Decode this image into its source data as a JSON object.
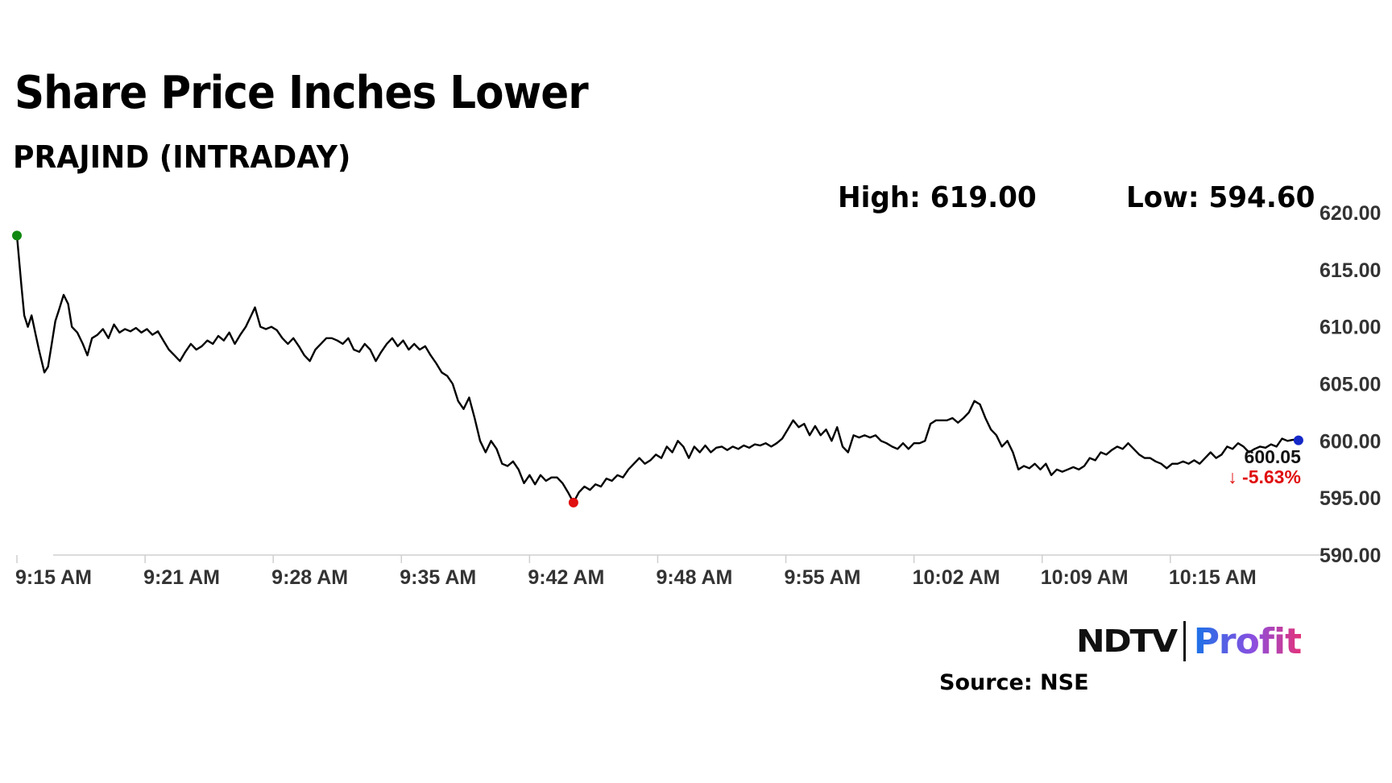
{
  "title": "Share Price Inches Lower",
  "subtitle": "PRAJIND (INTRADAY)",
  "stats": {
    "high": "High: 619.00",
    "low": "Low: 594.60"
  },
  "source": "Source: NSE",
  "logo": {
    "part1": "NDTV",
    "part2": "Profit"
  },
  "colors": {
    "line": "#000000",
    "start": "#118811",
    "low": "#e01010",
    "last": "#1428c8",
    "change": "#e01010",
    "axis": "#cfcfcf"
  },
  "chart_data": {
    "type": "line",
    "ylim": [
      590,
      620
    ],
    "y_ticks": [
      "620.00",
      "615.00",
      "610.00",
      "605.00",
      "600.00",
      "595.00",
      "590.00"
    ],
    "x_ticks": [
      "9:15 AM",
      "9:21 AM",
      "9:28 AM",
      "9:35 AM",
      "9:42 AM",
      "9:48 AM",
      "9:55 AM",
      "10:02 AM",
      "10:09 AM",
      "10:15 AM"
    ],
    "x_tick_minutes": [
      0,
      7,
      14,
      21,
      28,
      35,
      42,
      49,
      56,
      63
    ],
    "x_range_minutes": [
      0,
      70.4
    ],
    "last_value": "600.05",
    "change": "-5.63%",
    "change_arrow": "↓",
    "grid": false,
    "series": [
      {
        "name": "",
        "points": [
          [
            0.0,
            618.0
          ],
          [
            0.25,
            613.5
          ],
          [
            0.4,
            611.0
          ],
          [
            0.6,
            610.0
          ],
          [
            0.8,
            611.0
          ],
          [
            1.0,
            609.5
          ],
          [
            1.2,
            608.0
          ],
          [
            1.5,
            606.0
          ],
          [
            1.7,
            606.5
          ],
          [
            1.9,
            608.5
          ],
          [
            2.1,
            610.5
          ],
          [
            2.3,
            611.5
          ],
          [
            2.55,
            612.8
          ],
          [
            2.8,
            612.0
          ],
          [
            3.0,
            610.0
          ],
          [
            3.3,
            609.5
          ],
          [
            3.6,
            608.5
          ],
          [
            3.85,
            607.5
          ],
          [
            4.1,
            609.0
          ],
          [
            4.4,
            609.3
          ],
          [
            4.7,
            609.8
          ],
          [
            5.0,
            609.0
          ],
          [
            5.3,
            610.2
          ],
          [
            5.6,
            609.5
          ],
          [
            5.9,
            609.8
          ],
          [
            6.2,
            609.6
          ],
          [
            6.5,
            609.9
          ],
          [
            6.8,
            609.5
          ],
          [
            7.1,
            609.8
          ],
          [
            7.4,
            609.3
          ],
          [
            7.7,
            609.6
          ],
          [
            8.0,
            608.8
          ],
          [
            8.3,
            608.0
          ],
          [
            8.6,
            607.5
          ],
          [
            8.9,
            607.0
          ],
          [
            9.2,
            607.8
          ],
          [
            9.5,
            608.5
          ],
          [
            9.8,
            608.0
          ],
          [
            10.1,
            608.3
          ],
          [
            10.4,
            608.8
          ],
          [
            10.7,
            608.5
          ],
          [
            11.0,
            609.2
          ],
          [
            11.3,
            608.8
          ],
          [
            11.6,
            609.5
          ],
          [
            11.9,
            608.5
          ],
          [
            12.2,
            609.3
          ],
          [
            12.5,
            610.0
          ],
          [
            12.8,
            611.0
          ],
          [
            13.0,
            611.7
          ],
          [
            13.3,
            610.0
          ],
          [
            13.6,
            609.8
          ],
          [
            13.9,
            610.0
          ],
          [
            14.2,
            609.7
          ],
          [
            14.5,
            609.0
          ],
          [
            14.8,
            608.5
          ],
          [
            15.1,
            609.0
          ],
          [
            15.4,
            608.3
          ],
          [
            15.7,
            607.5
          ],
          [
            16.0,
            607.0
          ],
          [
            16.3,
            608.0
          ],
          [
            16.6,
            608.5
          ],
          [
            16.9,
            609.0
          ],
          [
            17.2,
            609.0
          ],
          [
            17.5,
            608.8
          ],
          [
            17.8,
            608.5
          ],
          [
            18.1,
            609.0
          ],
          [
            18.4,
            608.0
          ],
          [
            18.7,
            607.8
          ],
          [
            19.0,
            608.5
          ],
          [
            19.3,
            608.0
          ],
          [
            19.6,
            607.0
          ],
          [
            19.9,
            607.8
          ],
          [
            20.2,
            608.5
          ],
          [
            20.5,
            609.0
          ],
          [
            20.8,
            608.3
          ],
          [
            21.1,
            608.8
          ],
          [
            21.4,
            608.0
          ],
          [
            21.7,
            608.5
          ],
          [
            22.0,
            608.0
          ],
          [
            22.3,
            608.3
          ],
          [
            22.6,
            607.5
          ],
          [
            22.9,
            606.8
          ],
          [
            23.2,
            606.0
          ],
          [
            23.5,
            605.7
          ],
          [
            23.8,
            605.0
          ],
          [
            24.1,
            603.5
          ],
          [
            24.4,
            602.8
          ],
          [
            24.7,
            603.8
          ],
          [
            25.0,
            602.0
          ],
          [
            25.3,
            600.0
          ],
          [
            25.6,
            599.0
          ],
          [
            25.9,
            600.0
          ],
          [
            26.2,
            599.3
          ],
          [
            26.5,
            598.0
          ],
          [
            26.8,
            597.8
          ],
          [
            27.1,
            598.2
          ],
          [
            27.4,
            597.5
          ],
          [
            27.7,
            596.3
          ],
          [
            28.0,
            597.0
          ],
          [
            28.3,
            596.2
          ],
          [
            28.6,
            597.0
          ],
          [
            28.9,
            596.5
          ],
          [
            29.2,
            596.8
          ],
          [
            29.5,
            596.8
          ],
          [
            29.8,
            596.3
          ],
          [
            30.1,
            595.5
          ],
          [
            30.4,
            594.6
          ],
          [
            30.7,
            595.5
          ],
          [
            31.0,
            596.0
          ],
          [
            31.3,
            595.7
          ],
          [
            31.6,
            596.2
          ],
          [
            31.9,
            596.0
          ],
          [
            32.2,
            596.7
          ],
          [
            32.5,
            596.5
          ],
          [
            32.8,
            597.0
          ],
          [
            33.1,
            596.8
          ],
          [
            33.4,
            597.5
          ],
          [
            33.7,
            598.0
          ],
          [
            34.0,
            598.5
          ],
          [
            34.3,
            598.0
          ],
          [
            34.6,
            598.3
          ],
          [
            34.9,
            598.8
          ],
          [
            35.2,
            598.5
          ],
          [
            35.5,
            599.5
          ],
          [
            35.8,
            599.0
          ],
          [
            36.1,
            600.0
          ],
          [
            36.4,
            599.5
          ],
          [
            36.7,
            598.5
          ],
          [
            37.0,
            599.5
          ],
          [
            37.3,
            599.0
          ],
          [
            37.6,
            599.6
          ],
          [
            37.9,
            599.0
          ],
          [
            38.2,
            599.4
          ],
          [
            38.5,
            599.5
          ],
          [
            38.8,
            599.2
          ],
          [
            39.1,
            599.5
          ],
          [
            39.4,
            599.3
          ],
          [
            39.7,
            599.6
          ],
          [
            40.0,
            599.4
          ],
          [
            40.3,
            599.7
          ],
          [
            40.6,
            599.6
          ],
          [
            40.9,
            599.8
          ],
          [
            41.2,
            599.5
          ],
          [
            41.5,
            599.8
          ],
          [
            41.8,
            600.2
          ],
          [
            42.1,
            601.0
          ],
          [
            42.4,
            601.8
          ],
          [
            42.7,
            601.2
          ],
          [
            43.0,
            601.5
          ],
          [
            43.3,
            600.5
          ],
          [
            43.6,
            601.3
          ],
          [
            43.9,
            600.5
          ],
          [
            44.2,
            601.0
          ],
          [
            44.5,
            600.0
          ],
          [
            44.8,
            601.2
          ],
          [
            45.1,
            599.5
          ],
          [
            45.4,
            599.0
          ],
          [
            45.7,
            600.5
          ],
          [
            46.0,
            600.3
          ],
          [
            46.3,
            600.5
          ],
          [
            46.6,
            600.3
          ],
          [
            46.9,
            600.5
          ],
          [
            47.2,
            600.0
          ],
          [
            47.5,
            599.8
          ],
          [
            47.8,
            599.5
          ],
          [
            48.1,
            599.3
          ],
          [
            48.4,
            599.8
          ],
          [
            48.7,
            599.3
          ],
          [
            49.0,
            599.8
          ],
          [
            49.3,
            599.8
          ],
          [
            49.6,
            600.0
          ],
          [
            49.9,
            601.5
          ],
          [
            50.2,
            601.8
          ],
          [
            50.5,
            601.8
          ],
          [
            50.8,
            601.8
          ],
          [
            51.1,
            602.0
          ],
          [
            51.4,
            601.6
          ],
          [
            51.7,
            602.0
          ],
          [
            52.0,
            602.5
          ],
          [
            52.3,
            603.5
          ],
          [
            52.6,
            603.2
          ],
          [
            52.9,
            602.0
          ],
          [
            53.2,
            601.0
          ],
          [
            53.5,
            600.5
          ],
          [
            53.8,
            599.5
          ],
          [
            54.1,
            600.0
          ],
          [
            54.4,
            599.0
          ],
          [
            54.7,
            597.5
          ],
          [
            55.0,
            597.8
          ],
          [
            55.3,
            597.6
          ],
          [
            55.6,
            598.0
          ],
          [
            55.9,
            597.5
          ],
          [
            56.2,
            598.0
          ],
          [
            56.5,
            597.0
          ],
          [
            56.8,
            597.5
          ],
          [
            57.1,
            597.3
          ],
          [
            57.4,
            597.5
          ],
          [
            57.7,
            597.7
          ],
          [
            58.0,
            597.5
          ],
          [
            58.3,
            597.8
          ],
          [
            58.6,
            598.5
          ],
          [
            58.9,
            598.3
          ],
          [
            59.2,
            599.0
          ],
          [
            59.5,
            598.8
          ],
          [
            59.8,
            599.2
          ],
          [
            60.1,
            599.5
          ],
          [
            60.4,
            599.3
          ],
          [
            60.7,
            599.8
          ],
          [
            61.0,
            599.3
          ],
          [
            61.3,
            598.8
          ],
          [
            61.6,
            598.5
          ],
          [
            61.9,
            598.5
          ],
          [
            62.2,
            598.2
          ],
          [
            62.5,
            598.0
          ],
          [
            62.8,
            597.6
          ],
          [
            63.1,
            598.0
          ],
          [
            63.4,
            598.0
          ],
          [
            63.7,
            598.2
          ],
          [
            64.0,
            598.0
          ],
          [
            64.3,
            598.3
          ],
          [
            64.6,
            598.0
          ],
          [
            64.9,
            598.5
          ],
          [
            65.2,
            599.0
          ],
          [
            65.5,
            598.5
          ],
          [
            65.8,
            598.8
          ],
          [
            66.1,
            599.5
          ],
          [
            66.4,
            599.3
          ],
          [
            66.7,
            599.8
          ],
          [
            67.0,
            599.5
          ],
          [
            67.3,
            599.0
          ],
          [
            67.6,
            599.3
          ],
          [
            67.9,
            599.5
          ],
          [
            68.2,
            599.4
          ],
          [
            68.5,
            599.7
          ],
          [
            68.8,
            599.5
          ],
          [
            69.1,
            600.2
          ],
          [
            69.4,
            600.0
          ],
          [
            69.7,
            600.1
          ],
          [
            70.0,
            600.05
          ]
        ]
      }
    ]
  }
}
